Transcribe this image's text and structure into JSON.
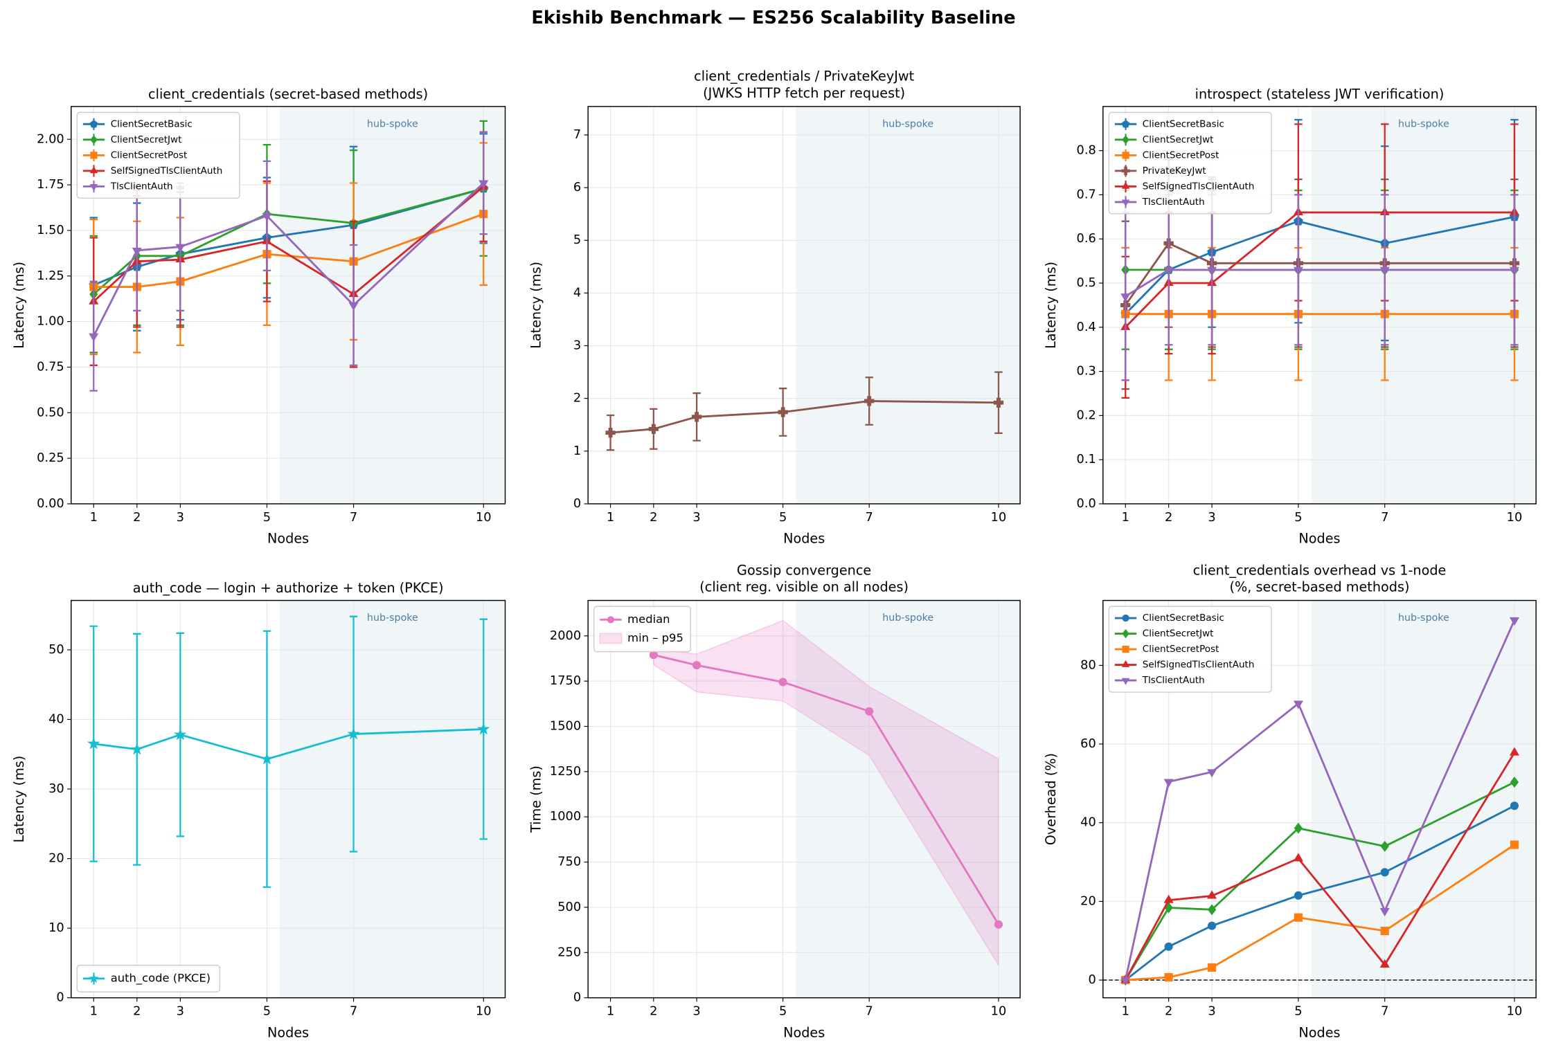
{
  "title": "Ekishib Benchmark — ES256 Scalability Baseline",
  "chart_data": [
    {
      "type": "line",
      "title": "client_credentials (secret-based methods)",
      "xlabel": "Nodes",
      "ylabel": "Latency (ms)",
      "x": [
        1,
        2,
        3,
        5,
        7,
        10
      ],
      "xlim": [
        0.48,
        10.5
      ],
      "xticks": [
        1,
        2,
        3,
        5,
        7,
        10
      ],
      "ylim": [
        0,
        2.18
      ],
      "yticks": [
        {
          "value": 0,
          "label": "0.00"
        },
        {
          "value": 0.25,
          "label": "0.25"
        },
        {
          "value": 0.5,
          "label": "0.50"
        },
        {
          "value": 0.75,
          "label": "0.75"
        },
        {
          "value": 1,
          "label": "1.00"
        },
        {
          "value": 1.25,
          "label": "1.25"
        },
        {
          "value": 1.5,
          "label": "1.50"
        },
        {
          "value": 1.75,
          "label": "1.75"
        },
        {
          "value": 2,
          "label": "2.00"
        }
      ],
      "grid": true,
      "legend": "upper left",
      "span_from": 5.3,
      "span_label": "hub-spoke",
      "series": [
        {
          "name": "ClientSecretBasic",
          "color": "#1f77b4",
          "marker": "pentagon",
          "values": [
            1.2,
            1.3,
            1.37,
            1.46,
            1.53,
            1.73
          ],
          "errors": [
            0.37,
            0.35,
            0.36,
            0.33,
            0.43,
            0.3
          ]
        },
        {
          "name": "ClientSecretJwt",
          "color": "#2ca02c",
          "marker": "diamond",
          "values": [
            1.15,
            1.36,
            1.36,
            1.59,
            1.54,
            1.73
          ],
          "errors": [
            0.32,
            0.38,
            0.38,
            0.38,
            0.4,
            0.37
          ]
        },
        {
          "name": "ClientSecretPost",
          "color": "#ff7f0e",
          "marker": "square",
          "values": [
            1.19,
            1.19,
            1.22,
            1.37,
            1.33,
            1.59
          ],
          "errors": [
            0.37,
            0.36,
            0.35,
            0.39,
            0.43,
            0.39
          ]
        },
        {
          "name": "SelfSignedTlsClientAuth",
          "color": "#d62728",
          "marker": "triangle-up",
          "values": [
            1.11,
            1.33,
            1.34,
            1.44,
            1.15,
            1.74
          ],
          "errors": [
            0.35,
            0.36,
            0.37,
            0.33,
            0.4,
            0.3
          ]
        },
        {
          "name": "TlsClientAuth",
          "color": "#9467bd",
          "marker": "triangle-down",
          "values": [
            0.92,
            1.39,
            1.41,
            1.58,
            1.09,
            1.76
          ],
          "errors": [
            0.3,
            0.33,
            0.35,
            0.3,
            0.33,
            0.28
          ]
        }
      ]
    },
    {
      "type": "line",
      "title": [
        "client_credentials / PrivateKeyJwt",
        "(JWKS HTTP fetch per request)"
      ],
      "xlabel": "Nodes",
      "ylabel": "Latency (ms)",
      "x": [
        1,
        2,
        3,
        5,
        7,
        10
      ],
      "xlim": [
        0.48,
        10.5
      ],
      "xticks": [
        1,
        2,
        3,
        5,
        7,
        10
      ],
      "ylim": [
        0,
        7.54
      ],
      "yticks": [
        0,
        1,
        2,
        3,
        4,
        5,
        6,
        7
      ],
      "grid": true,
      "span_from": 5.3,
      "span_label": "hub-spoke",
      "series": [
        {
          "color": "#8c564b",
          "marker": "plus",
          "values": [
            1.35,
            1.42,
            1.65,
            1.74,
            1.95,
            1.92
          ],
          "errors": [
            0.33,
            0.38,
            0.45,
            0.45,
            0.45,
            0.58
          ]
        }
      ]
    },
    {
      "type": "line",
      "title": "introspect (stateless JWT verification)",
      "xlabel": "Nodes",
      "ylabel": "Latency (ms)",
      "x": [
        1,
        2,
        3,
        5,
        7,
        10
      ],
      "xlim": [
        0.48,
        10.5
      ],
      "xticks": [
        1,
        2,
        3,
        5,
        7,
        10
      ],
      "ylim": [
        0,
        0.9
      ],
      "yticks": [
        {
          "value": 0,
          "label": "0.0"
        },
        0.1,
        0.2,
        0.3,
        0.4,
        0.5,
        0.6,
        0.7,
        0.8
      ],
      "grid": true,
      "legend": "upper left",
      "span_from": 5.3,
      "span_label": "hub-spoke",
      "series": [
        {
          "name": "ClientSecretBasic",
          "color": "#1f77b4",
          "marker": "pentagon",
          "values": [
            0.43,
            0.53,
            0.57,
            0.64,
            0.59,
            0.65
          ],
          "errors": [
            0.15,
            0.18,
            0.17,
            0.23,
            0.22,
            0.22
          ]
        },
        {
          "name": "ClientSecretJwt",
          "color": "#2ca02c",
          "marker": "diamond",
          "values": [
            0.53,
            0.53,
            0.53,
            0.53,
            0.53,
            0.53
          ],
          "errors": [
            0.18,
            0.18,
            0.18,
            0.18,
            0.18,
            0.18
          ]
        },
        {
          "name": "ClientSecretPost",
          "color": "#ff7f0e",
          "marker": "square",
          "values": [
            0.43,
            0.43,
            0.43,
            0.43,
            0.43,
            0.43
          ],
          "errors": [
            0.15,
            0.15,
            0.15,
            0.15,
            0.15,
            0.15
          ]
        },
        {
          "name": "PrivateKeyJwt",
          "color": "#8c564b",
          "marker": "plus",
          "values": [
            0.45,
            0.59,
            0.545,
            0.545,
            0.545,
            0.545
          ],
          "errors": [
            0.19,
            0.19,
            0.19,
            0.19,
            0.19,
            0.19
          ]
        },
        {
          "name": "SelfSignedTlsClientAuth",
          "color": "#d62728",
          "marker": "triangle-up",
          "values": [
            0.4,
            0.5,
            0.5,
            0.66,
            0.66,
            0.66
          ],
          "errors": [
            0.16,
            0.16,
            0.16,
            0.2,
            0.2,
            0.2
          ]
        },
        {
          "name": "TlsClientAuth",
          "color": "#9467bd",
          "marker": "triangle-down",
          "values": [
            0.47,
            0.53,
            0.53,
            0.53,
            0.53,
            0.53
          ],
          "errors": [
            0.19,
            0.17,
            0.17,
            0.17,
            0.17,
            0.17
          ]
        }
      ]
    },
    {
      "type": "line",
      "title": "auth_code — login + authorize + token (PKCE)",
      "xlabel": "Nodes",
      "ylabel": "Latency (ms)",
      "x": [
        1,
        2,
        3,
        5,
        7,
        10
      ],
      "xlim": [
        0.48,
        10.5
      ],
      "xticks": [
        1,
        2,
        3,
        5,
        7,
        10
      ],
      "ylim": [
        0,
        57.1
      ],
      "yticks": [
        0,
        10,
        20,
        30,
        40,
        50
      ],
      "grid": true,
      "legend": "lower left",
      "span_from": 5.3,
      "span_label": "hub-spoke",
      "series": [
        {
          "name": "auth_code (PKCE)",
          "color": "#17becf",
          "marker": "star",
          "values": [
            36.5,
            35.7,
            37.8,
            34.3,
            37.9,
            38.6
          ],
          "errors": [
            16.9,
            16.6,
            14.6,
            18.4,
            16.9,
            15.8
          ]
        }
      ]
    },
    {
      "type": "line",
      "title": [
        "Gossip convergence",
        "(client reg. visible on all nodes)"
      ],
      "xlabel": "Nodes",
      "ylabel": "Time (ms)",
      "x": [
        1,
        2,
        3,
        5,
        7,
        10
      ],
      "xlim": [
        0.48,
        10.5
      ],
      "xticks": [
        1,
        2,
        3,
        5,
        7,
        10
      ],
      "ylim": [
        0,
        2196
      ],
      "yticks": [
        0,
        250,
        500,
        750,
        1000,
        1250,
        1500,
        1750,
        2000
      ],
      "grid": true,
      "legend": "upper left",
      "span_from": 5.3,
      "span_label": "hub-spoke",
      "series": [
        {
          "name": "median",
          "color": "#e377c2",
          "marker": "circle",
          "values": [
            null,
            1895,
            1838,
            1745,
            1583,
            405
          ]
        }
      ],
      "band": {
        "name": "min – p95",
        "color": "#e377c2",
        "lower": [
          null,
          1840,
          1690,
          1640,
          1340,
          180
        ],
        "upper": [
          null,
          1930,
          1900,
          2085,
          1720,
          1320
        ]
      }
    },
    {
      "type": "line",
      "title": [
        "client_credentials overhead vs 1-node",
        "(%, secret-based methods)"
      ],
      "xlabel": "Nodes",
      "ylabel": "Overhead (%)",
      "x": [
        1,
        2,
        3,
        5,
        7,
        10
      ],
      "xlim": [
        0.48,
        10.5
      ],
      "xticks": [
        1,
        2,
        3,
        5,
        7,
        10
      ],
      "ylim": [
        -4.5,
        96.5
      ],
      "yticks": [
        0,
        20,
        40,
        60,
        80
      ],
      "grid": true,
      "legend": "upper left",
      "span_from": 5.3,
      "span_label": "hub-spoke",
      "reference_line": 0,
      "series": [
        {
          "name": "ClientSecretBasic",
          "color": "#1f77b4",
          "marker": "circle",
          "values": [
            0,
            8.5,
            13.8,
            21.5,
            27.4,
            44.3
          ]
        },
        {
          "name": "ClientSecretJwt",
          "color": "#2ca02c",
          "marker": "diamond",
          "values": [
            0,
            18.4,
            17.9,
            38.6,
            34.0,
            50.3
          ]
        },
        {
          "name": "ClientSecretPost",
          "color": "#ff7f0e",
          "marker": "square",
          "values": [
            0,
            0.7,
            3.2,
            15.9,
            12.5,
            34.4
          ]
        },
        {
          "name": "SelfSignedTlsClientAuth",
          "color": "#d62728",
          "marker": "triangle-up",
          "values": [
            0,
            20.3,
            21.4,
            30.9,
            3.9,
            57.8
          ]
        },
        {
          "name": "TlsClientAuth",
          "color": "#9467bd",
          "marker": "triangle-down",
          "values": [
            0,
            50.4,
            52.9,
            70.3,
            17.6,
            91.5
          ]
        }
      ]
    }
  ]
}
